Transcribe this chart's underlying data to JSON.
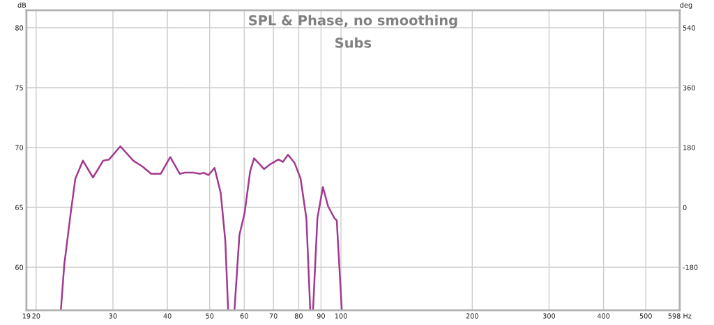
{
  "chart_data": {
    "type": "line",
    "title": "SPL & Phase, no smoothing",
    "subtitle": "Subs",
    "ylabel": "dB",
    "y2label": "deg",
    "series": [
      {
        "color": "#a3388f",
        "x": [
          22.8,
          23.2,
          24.0,
          24.6,
          25.6,
          27.0,
          28.5,
          29.4,
          31.2,
          33.4,
          35.1,
          36.7,
          38.6,
          40.6,
          42.7,
          43.8,
          46.0,
          47.5,
          48.4,
          49.7,
          51.3,
          53.0,
          54.3,
          55.1,
          56.0,
          57.0,
          58.5,
          60.1,
          61.9,
          63.2,
          66.6,
          68.8,
          71.9,
          73.6,
          75.6,
          78.3,
          80.8,
          83.3,
          85.0,
          85.7,
          86.3,
          88.3,
          90.9,
          93.4,
          96.6,
          97.8,
          100.4
        ],
        "values": [
          56.5,
          60.2,
          64.5,
          67.4,
          68.9,
          67.5,
          68.9,
          69.0,
          70.1,
          68.9,
          68.4,
          67.8,
          67.8,
          69.2,
          67.8,
          67.9,
          67.9,
          67.8,
          67.9,
          67.7,
          68.3,
          66.2,
          62.2,
          56.5,
          null,
          56.5,
          62.7,
          64.5,
          68.0,
          69.1,
          68.2,
          68.6,
          69.0,
          68.8,
          69.4,
          68.7,
          67.4,
          64.1,
          56.5,
          null,
          56.5,
          64.1,
          66.7,
          65.1,
          64.1,
          63.9,
          56.5
        ]
      }
    ],
    "xlim": [
      19,
      598
    ],
    "log": "x",
    "xticks": [
      19,
      20,
      30,
      40,
      50,
      60,
      70,
      80,
      90,
      100,
      200,
      300,
      400,
      500,
      {
        "value": 598,
        "label": "598 Hz"
      }
    ],
    "ylim": [
      56.4,
      81.45
    ],
    "yticks": [
      60,
      65,
      70,
      75,
      80
    ],
    "y2lim": [
      -309.6,
      592.2
    ],
    "y2ticks": [
      -180,
      0,
      180,
      360,
      540
    ],
    "grid": true,
    "line_style": "solid",
    "marker": "none"
  }
}
